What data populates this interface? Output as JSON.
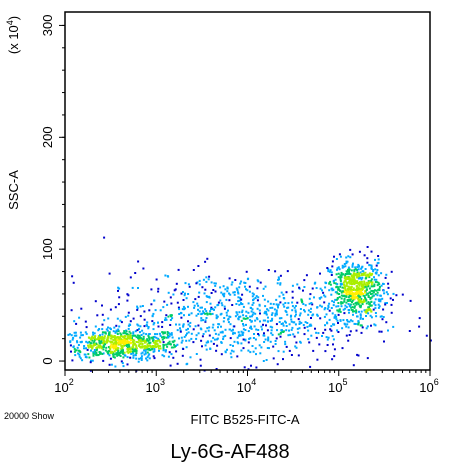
{
  "chart_data": {
    "type": "scatter",
    "subtype": "flow-cytometry-density-dot-plot",
    "x_axis": {
      "label": "FITC B525-FITC-A",
      "scale": "log",
      "range": [
        100,
        1000000
      ],
      "ticks": [
        {
          "base": "10",
          "exp": "2",
          "value": 100
        },
        {
          "base": "10",
          "exp": "3",
          "value": 1000
        },
        {
          "base": "10",
          "exp": "4",
          "value": 10000
        },
        {
          "base": "10",
          "exp": "5",
          "value": 100000
        },
        {
          "base": "10",
          "exp": "6",
          "value": 1000000
        }
      ]
    },
    "y_axis": {
      "label": "SSC-A",
      "multiplier_label": {
        "prefix": "(x 10",
        "exp": "4",
        "suffix": ")"
      },
      "scale": "linear",
      "range": [
        -8,
        312
      ],
      "ticks": [
        {
          "label": "0",
          "value": 0
        },
        {
          "label": "100",
          "value": 100
        },
        {
          "label": "200",
          "value": 200
        },
        {
          "label": "300",
          "value": 300
        }
      ]
    },
    "events_label": "20000 Show",
    "caption": "Ly-6G-AF488",
    "populations": [
      {
        "name_visible": false,
        "center_x": 400,
        "center_y": 16,
        "spread_log_x": 0.32,
        "spread_y": 7,
        "events": 700
      },
      {
        "name_visible": false,
        "center_x": 150000,
        "center_y": 65,
        "spread_log_x": 0.15,
        "spread_y": 13,
        "events": 650
      },
      {
        "name_visible": false,
        "center_x": 8000,
        "center_y": 40,
        "spread_log_x": 0.75,
        "spread_y": 20,
        "events": 900
      }
    ],
    "density_colors": [
      "#0000cc",
      "#00aaff",
      "#00cc66",
      "#aaee00",
      "#ffee00"
    ],
    "grid": false,
    "legend": "none"
  }
}
